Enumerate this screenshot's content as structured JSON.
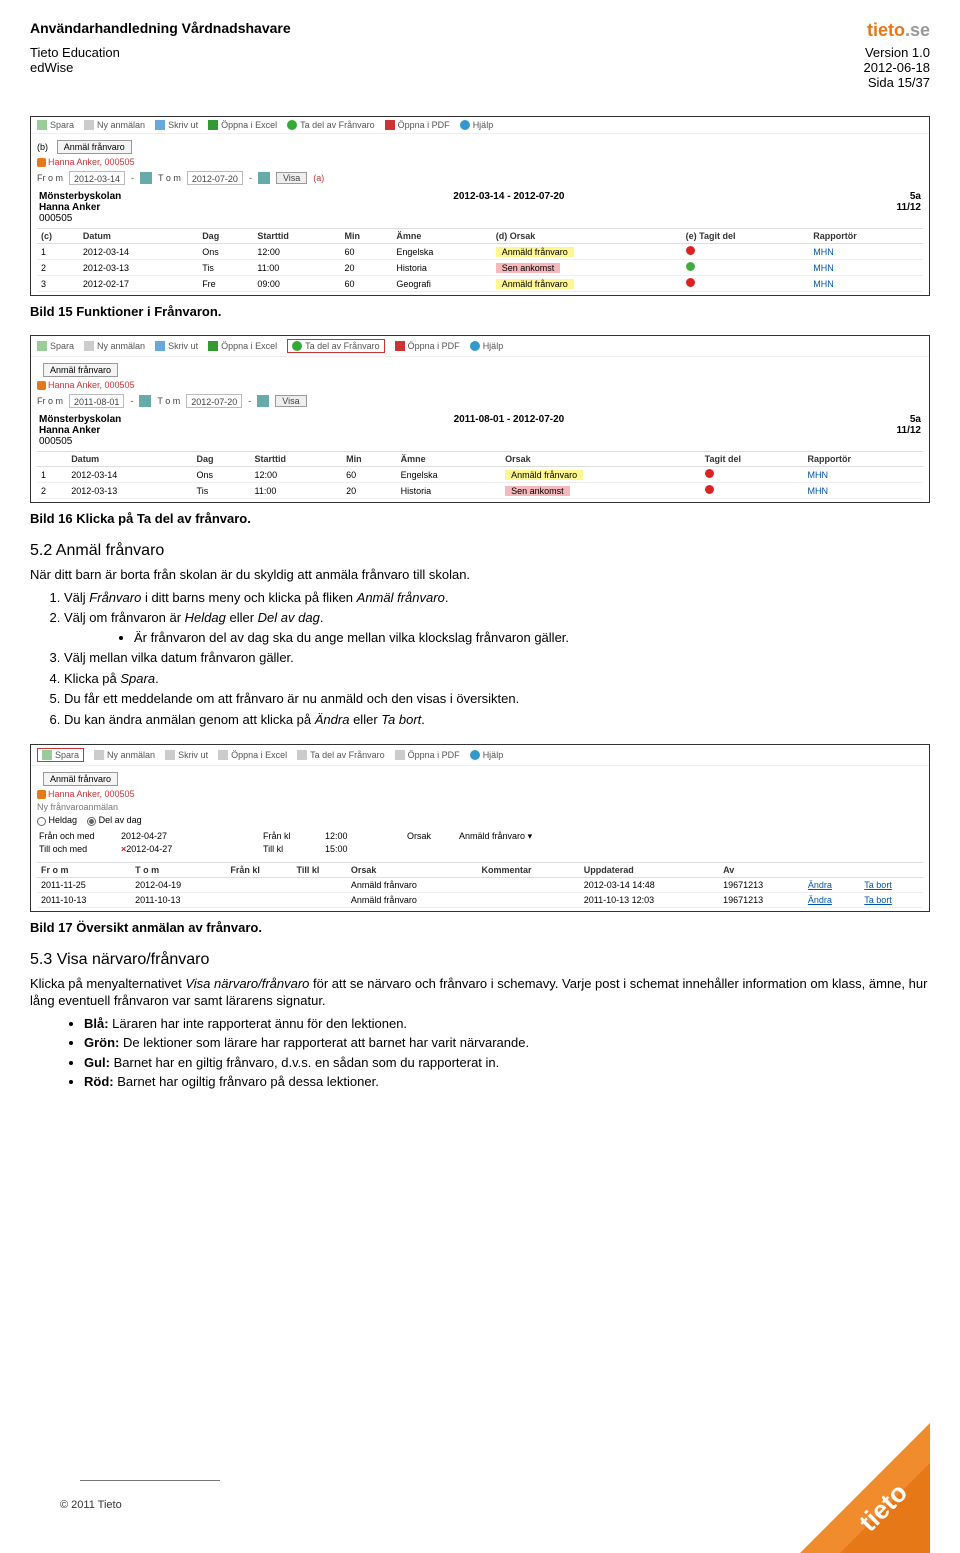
{
  "header": {
    "doc_title": "Användarhandledning Vårdnadshavare",
    "org1": "Tieto Education",
    "org2": "edWise",
    "version": "Version 1.0",
    "date": "2012-06-18",
    "page": "Sida 15/37",
    "logo_brand": "tieto",
    "logo_suffix": ".se"
  },
  "shot1": {
    "toolbar": {
      "spara": "Spara",
      "ny": "Ny anmälan",
      "skriv": "Skriv ut",
      "oppna_excel": "Öppna i Excel",
      "ta_del": "Ta del av Frånvaro",
      "oppna_pdf": "Öppna i PDF",
      "hjalp": "Hjälp"
    },
    "anmal_btn": "Anmäl frånvaro",
    "crumb": "Hanna Anker, 000505",
    "date_from_lbl": "Fr o m",
    "date_from": "2012-03-14",
    "date_to_lbl": "T o m",
    "date_to": "2012-07-20",
    "visa": "Visa",
    "marker_a": "(a)",
    "marker_b": "(b)",
    "marker_c": "(c)",
    "marker_d": "(d)",
    "marker_e": "(e)",
    "school": "Mönsterbyskolan",
    "name": "Hanna Anker",
    "code": "000505",
    "range": "2012-03-14 - 2012-07-20",
    "klass": "5a",
    "term": "11/12",
    "cols": {
      "datum": "Datum",
      "dag": "Dag",
      "start": "Starttid",
      "min": "Min",
      "amne": "Ämne",
      "orsak": "Orsak",
      "tagit": "Tagit del",
      "rapp": "Rapportör"
    },
    "rows": [
      {
        "n": "1",
        "datum": "2012-03-14",
        "dag": "Ons",
        "start": "12:00",
        "min": "60",
        "amne": "Engelska",
        "orsak": "Anmäld frånvaro",
        "orsak_color": "yellow",
        "tagit": "red",
        "rapp": "MHN"
      },
      {
        "n": "2",
        "datum": "2012-03-13",
        "dag": "Tis",
        "start": "11:00",
        "min": "20",
        "amne": "Historia",
        "orsak": "Sen ankomst",
        "orsak_color": "pink",
        "tagit": "green",
        "rapp": "MHN"
      },
      {
        "n": "3",
        "datum": "2012-02-17",
        "dag": "Fre",
        "start": "09:00",
        "min": "60",
        "amne": "Geografi",
        "orsak": "Anmäld frånvaro",
        "orsak_color": "yellow",
        "tagit": "red",
        "rapp": "MHN"
      }
    ]
  },
  "caption1": "Bild 15 Funktioner i Frånvaron.",
  "shot2": {
    "toolbar": {
      "spara": "Spara",
      "ny": "Ny anmälan",
      "skriv": "Skriv ut",
      "oppna_excel": "Öppna i Excel",
      "ta_del": "Ta del av Frånvaro",
      "oppna_pdf": "Öppna i PDF",
      "hjalp": "Hjälp"
    },
    "anmal_btn": "Anmäl frånvaro",
    "crumb": "Hanna Anker, 000505",
    "date_from_lbl": "Fr o m",
    "date_from": "2011-08-01",
    "date_to_lbl": "T o m",
    "date_to": "2012-07-20",
    "visa": "Visa",
    "school": "Mönsterbyskolan",
    "name": "Hanna Anker",
    "code": "000505",
    "range": "2011-08-01 - 2012-07-20",
    "klass": "5a",
    "term": "11/12",
    "cols": {
      "datum": "Datum",
      "dag": "Dag",
      "start": "Starttid",
      "min": "Min",
      "amne": "Ämne",
      "orsak": "Orsak",
      "tagit": "Tagit del",
      "rapp": "Rapportör"
    },
    "rows": [
      {
        "n": "1",
        "datum": "2012-03-14",
        "dag": "Ons",
        "start": "12:00",
        "min": "60",
        "amne": "Engelska",
        "orsak": "Anmäld frånvaro",
        "orsak_color": "yellow",
        "tagit": "red",
        "rapp": "MHN"
      },
      {
        "n": "2",
        "datum": "2012-03-13",
        "dag": "Tis",
        "start": "11:00",
        "min": "20",
        "amne": "Historia",
        "orsak": "Sen ankomst",
        "orsak_color": "pink",
        "tagit": "red",
        "rapp": "MHN"
      }
    ]
  },
  "caption2": "Bild 16 Klicka på Ta del av frånvaro.",
  "section52": {
    "heading": "5.2 Anmäl frånvaro",
    "intro": "När ditt barn är borta från skolan är du skyldig att anmäla frånvaro till skolan.",
    "li1_a": "Välj ",
    "li1_i1": "Frånvaro",
    "li1_b": " i ditt barns meny och klicka på fliken ",
    "li1_i2": "Anmäl frånvaro",
    "li1_c": ".",
    "li2_a": "Välj om frånvaron är ",
    "li2_i1": "Heldag",
    "li2_b": " eller ",
    "li2_i2": "Del av dag",
    "li2_c": ".",
    "li2_sub": "Är frånvaron del av dag ska du ange mellan vilka klockslag frånvaron gäller.",
    "li3": "Välj mellan vilka datum frånvaron gäller.",
    "li4_a": "Klicka på ",
    "li4_i": "Spara",
    "li4_b": ".",
    "li5": "Du får ett meddelande om att frånvaro är nu anmäld och den visas i översikten.",
    "li6_a": "Du kan ändra anmälan genom att klicka på ",
    "li6_i1": "Ändra",
    "li6_b": " eller ",
    "li6_i2": "Ta bort",
    "li6_c": "."
  },
  "shot3": {
    "toolbar": {
      "spara": "Spara",
      "ny": "Ny anmälan",
      "skriv": "Skriv ut",
      "oppna_excel": "Öppna i Excel",
      "ta_del": "Ta del av Frånvaro",
      "oppna_pdf": "Öppna i PDF",
      "hjalp": "Hjälp"
    },
    "anmal_btn": "Anmäl frånvaro",
    "crumb": "Hanna Anker, 000505",
    "ny_line": "Ny frånvaroanmälan",
    "heldag": "Heldag",
    "delavdag": "Del av dag",
    "from_lbl": "Från och med",
    "from_date": "2012-04-27",
    "to_lbl": "Till och med",
    "to_date": "2012-04-27",
    "fran_kl_lbl": "Från kl",
    "fran_kl": "12:00",
    "till_kl_lbl": "Till kl",
    "till_kl": "15:00",
    "orsak_lbl": "Orsak",
    "orsak_val": "Anmäld frånvaro",
    "cols": {
      "from": "Fr o m",
      "to": "T o m",
      "frankl": "Från kl",
      "tillkl": "Till kl",
      "orsak": "Orsak",
      "kommentar": "Kommentar",
      "uppdaterad": "Uppdaterad",
      "av": "Av"
    },
    "rows": [
      {
        "from": "2011-11-25",
        "to": "2012-04-19",
        "frankl": "",
        "tillkl": "",
        "orsak": "Anmäld frånvaro",
        "kommentar": "",
        "upp": "2012-03-14 14:48",
        "av": "19671213",
        "andra": "Ändra",
        "tabort": "Ta bort"
      },
      {
        "from": "2011-10-13",
        "to": "2011-10-13",
        "frankl": "",
        "tillkl": "",
        "orsak": "Anmäld frånvaro",
        "kommentar": "",
        "upp": "2011-10-13 12:03",
        "av": "19671213",
        "andra": "Ändra",
        "tabort": "Ta bort"
      }
    ]
  },
  "caption3": "Bild 17 Översikt anmälan av frånvaro.",
  "section53": {
    "heading": "5.3 Visa närvaro/frånvaro",
    "p1_a": "Klicka på menyalternativet ",
    "p1_i": "Visa närvaro/frånvaro",
    "p1_b": " för att se närvaro och frånvaro i schemavy. Varje post i schemat innehåller information om klass, ämne, hur lång eventuell frånvaron var samt lärarens signatur.",
    "b1_h": "Blå:",
    "b1_t": " Läraren har inte rapporterat ännu för den lektionen.",
    "b2_h": "Grön:",
    "b2_t": " De lektioner som lärare har rapporterat att barnet har varit närvarande.",
    "b3_h": "Gul:",
    "b3_t": " Barnet har en giltig frånvaro, d.v.s. en sådan som du rapporterat in.",
    "b4_h": "Röd:",
    "b4_t": " Barnet har ogiltig frånvaro på dessa lektioner."
  },
  "footer": {
    "copy": "© 2011 Tieto"
  },
  "colors": {
    "brand_orange": "#e67817",
    "hl_yellow": "#fff68f",
    "hl_pink": "#f4b8bd",
    "red_dot": "#d22",
    "green_dot": "#4a4"
  }
}
